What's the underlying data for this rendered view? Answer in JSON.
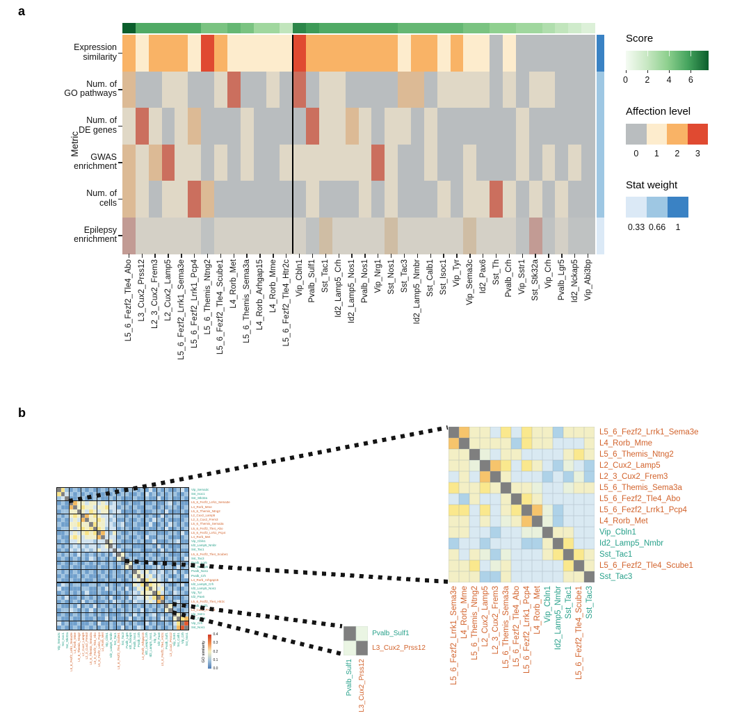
{
  "figure": {
    "panel_a_label": "a",
    "panel_b_label": "b"
  },
  "chart_data": [
    {
      "id": "panel_a",
      "type": "heatmap",
      "ylabel": "Metric",
      "row_labels": [
        [
          "Expression",
          "similarity"
        ],
        [
          "Num. of",
          "GO pathways"
        ],
        [
          "Num. of",
          "DE genes"
        ],
        [
          "GWAS",
          "enrichment"
        ],
        [
          "Num. of",
          "cells"
        ],
        [
          "Epilepsy",
          "enrichment"
        ]
      ],
      "columns": [
        "L5_6_Fezf2_Tle4_Abo",
        "L3_Cux2_Prss12",
        "L2_3_Cux2_Frem3",
        "L2_Cux2_Lamp5",
        "L5_6_Fezf2_Lrrk1_Sema3e",
        "L5_6_Fezf2_Lrrk1_Pcp4",
        "L5_6_Themis_Ntng2",
        "L5_6_Fezf2_Tle4_Scube1",
        "L4_Rorb_Met",
        "L5_6_Themis_Sema3a",
        "L4_Rorb_Arhgap15",
        "L4_Rorb_Mme",
        "L5_6_Fezf2_Tle4_Htr2c",
        "Vip_Cbln1",
        "Pvalb_Sulf1",
        "Sst_Tac1",
        "Id2_Lamp5_Crh",
        "Id2_Lamp5_Nos1",
        "Pvalb_Nos1",
        "Vip_Nrg1",
        "Sst_Nos1",
        "Sst_Tac3",
        "Id2_Lamp5_Nmbr",
        "Sst_Calb1",
        "Sst_Isoc1",
        "Vip_Tyr",
        "Vip_Sema3c",
        "Id2_Pax6",
        "Sst_Th",
        "Pvalb_Crh",
        "Vip_Sstr1",
        "Sst_Stk32a",
        "Vip_Crh",
        "Pvalb_Lgr5",
        "Id2_Nckap5",
        "Vip_Abi3bp"
      ],
      "affection_values": [
        [
          2,
          1,
          2,
          2,
          2,
          1,
          3,
          2,
          1,
          1,
          1,
          1,
          1,
          3,
          2,
          2,
          2,
          2,
          2,
          2,
          2,
          1,
          2,
          2,
          1,
          2,
          1,
          1,
          0,
          1,
          0,
          0,
          0,
          0,
          0,
          0
        ],
        [
          2,
          0,
          0,
          1,
          1,
          0,
          0,
          1,
          3,
          0,
          0,
          1,
          0,
          3,
          0,
          1,
          1,
          0,
          0,
          0,
          0,
          2,
          2,
          0,
          1,
          1,
          1,
          1,
          0,
          1,
          0,
          1,
          1,
          0,
          0,
          0
        ],
        [
          1,
          3,
          1,
          0,
          1,
          2,
          0,
          0,
          0,
          1,
          0,
          0,
          0,
          0,
          3,
          1,
          1,
          2,
          1,
          0,
          1,
          1,
          0,
          1,
          0,
          0,
          0,
          0,
          0,
          0,
          1,
          0,
          0,
          0,
          0,
          0
        ],
        [
          2,
          1,
          2,
          3,
          1,
          1,
          0,
          1,
          0,
          1,
          0,
          0,
          1,
          1,
          1,
          1,
          1,
          1,
          1,
          3,
          1,
          0,
          0,
          1,
          0,
          0,
          1,
          0,
          0,
          0,
          1,
          0,
          1,
          0,
          1,
          0
        ],
        [
          2,
          1,
          0,
          1,
          1,
          3,
          2,
          0,
          0,
          0,
          0,
          0,
          0,
          0,
          1,
          0,
          0,
          0,
          1,
          0,
          1,
          0,
          0,
          0,
          1,
          0,
          1,
          1,
          3,
          1,
          0,
          1,
          0,
          1,
          0,
          0
        ],
        [
          3,
          1,
          1,
          1,
          1,
          1,
          0,
          1,
          1,
          1,
          1,
          1,
          1,
          1,
          0,
          2,
          1,
          1,
          1,
          1,
          2,
          1,
          1,
          1,
          1,
          1,
          2,
          1,
          1,
          1,
          0,
          3,
          0,
          1,
          0,
          0
        ]
      ],
      "scores": [
        7,
        5,
        5,
        5,
        5,
        5,
        4,
        4,
        4.5,
        4,
        3,
        3,
        2,
        6,
        5.5,
        5,
        5,
        5,
        5,
        5,
        5,
        4.5,
        4.5,
        4.5,
        4.5,
        4.5,
        4,
        4,
        3.5,
        3.5,
        3,
        3,
        2.5,
        2,
        1.5,
        1
      ],
      "stat_weights": [
        1,
        0.66,
        0.66,
        0.66,
        0.66,
        0.33
      ],
      "divider_after_column": 13,
      "palettes": {
        "1": [
          "#b9bdbf",
          "#fdeccd",
          "#f9b366",
          "#e04a31"
        ],
        "0.66": [
          "#b9bdbf",
          "#e0d8c6",
          "#dcba95",
          "#cb6f5e"
        ],
        "0.33": [
          "#bfc2c2",
          "#d4d0c6",
          "#cfbda4",
          "#c29b94"
        ]
      },
      "stat_colors": {
        "1": "#3a82c4",
        "0.66": "#9ec7e3",
        "0.33": "#dbe9f6"
      },
      "score_color_stops": [
        [
          0,
          "#f5fbf3"
        ],
        [
          0.25,
          "#c9e8c4"
        ],
        [
          0.5,
          "#8fd08f"
        ],
        [
          0.75,
          "#45a45e"
        ],
        [
          1,
          "#0b5e2c"
        ]
      ],
      "legends": {
        "score": {
          "title": "Score",
          "ticks": [
            "0",
            "2",
            "4",
            "6"
          ],
          "tick_values": [
            0,
            2,
            4,
            6
          ]
        },
        "affection": {
          "title": "Affection level",
          "ticks": [
            "0",
            "1",
            "2",
            "3"
          ]
        },
        "stat": {
          "title": "Stat weight",
          "ticks": [
            "0.33",
            "0.66",
            "1"
          ]
        }
      }
    },
    {
      "id": "panel_b_small",
      "type": "heatmap",
      "labels": [
        "Vip_Sema3c",
        "Sst_Isoc1",
        "Sst_Stk32a",
        "L5_6_Fezf2_Lrrk1_Sema3e",
        "L4_Rorb_Mme",
        "L5_6_Themis_Ntng2",
        "L2_Cux2_Lamp5",
        "L2_3_Cux2_Frem3",
        "L5_6_Themis_Sema3a",
        "L5_6_Fezf2_Tle4_Abo",
        "L5_6_Fezf2_Lrrk1_Pcp4",
        "L4_Rorb_Met",
        "Vip_Cbln1",
        "Id2_Lamp5_Nmbr",
        "Sst_Tac1",
        "L5_6_Fezf2_Tle4_Scube1",
        "Sst_Tac3",
        "Pvalb_Lgr5",
        "Id2_Nckap5",
        "Pvalb_Nos1",
        "Pvalb_Crh",
        "L4_Rorb_Arhgap15",
        "Id2_Lamp5_Crh",
        "Id2_Lamp5_Nos1",
        "Vip_Tyr",
        "Id2_Pax6",
        "L5_6_Fezf2_Tle4_Htr2c",
        "Pvalb_Sulf1",
        "L3_Cux2_Prss12",
        "Vip_Sstr1",
        "Sst_Calb1",
        "Vip_Crh",
        "Sst_Nos1"
      ],
      "matrix": [
        "963232323223232322332324232322342",
        "694323232322323233223242323233223",
        "349223322332232322232232242232232",
        "232975545545434322322322322342322",
        "322795655455644233232233223233223",
        "233559546545534422223222332422232",
        "323565975654443332332323224233322",
        "232454795565434223223232432322223",
        "322556559655443342232224223243232",
        "233545656965344233222332232422323",
        "223454565697435322332223322233242",
        "322565455579444233223242233322223",
        "232445444344954322232322422233422",
        "323343434434594233322233242322233",
        "232434343454449422233222324232322",
        "323324323232324953222323223322232",
        "232232324323232592332232332233224",
        "232232232323232329523224223223232",
        "322322322232232235932322342332423",
        "323232323232323232395453434234232",
        "232223232223223223259545343322324",
        "322322322322322322345964543243222",
        "243233223323232232254696554322342",
        "422222332232432324235469545233223",
        "232323242232223232343555964324332",
        "324223232323242232434454697232223",
        "232232423222324323243345479323422",
        "322324232423232322323232323952332",
        "233432324232323232332423232593223",
        "232232323232322233242323423239543",
        "322322322322423222423232324325967",
        "423223223242232323232242322324698",
        "232232232323232242324323232233789"
      ],
      "palette": {
        "0": "#37679f",
        "1": "#4a7db5",
        "2": "#6f9fcc",
        "3": "#9fc3e0",
        "4": "#d0e2ef",
        "5": "#f0eec8",
        "6": "#f7e387",
        "7": "#f3b95f",
        "8": "#e2582e",
        "9": "#7f7f7f"
      },
      "block_boundaries": [
        3,
        6,
        10,
        13,
        15,
        17,
        19,
        22,
        25,
        27,
        29,
        31
      ],
      "colorbar": {
        "title": "GO similarity",
        "ticks": [
          "0.4",
          "0.3",
          "0.2",
          "0.1",
          "0.0"
        ],
        "stops": [
          "#cf3927",
          "#f08a4b",
          "#f8f0c0",
          "#a8c6dc",
          "#4e7cb5"
        ]
      }
    },
    {
      "id": "panel_b_large",
      "type": "heatmap",
      "labels": [
        "L5_6_Fezf2_Lrrk1_Sema3e",
        "L4_Rorb_Mme",
        "L5_6_Themis_Ntng2",
        "L2_Cux2_Lamp5",
        "L2_3_Cux2_Frem3",
        "L5_6_Themis_Sema3a",
        "L5_6_Fezf2_Tle4_Abo",
        "L5_6_Fezf2_Lrrk1_Pcp4",
        "L4_Rorb_Met",
        "Vip_Cbln1",
        "Id2_Lamp5_Nmbr",
        "Sst_Tac1",
        "L5_6_Fezf2_Tle4_Scube1",
        "Sst_Tac3"
      ],
      "matrix": [
        "GOyybYbYyyByyy",
        "OGyyyyBYyybbby",
        "yyGwbyybbbbyYy",
        "yywGOYbYybBwbB",
        "bybOGybbbBbBwB",
        "YyyYyGyywbbwyy",
        "bBybbyGYybbbbb",
        "YYbYbyYGOwBbbb",
        "yybybwyOGwBbbb",
        "yybbBbbwwGyybb",
        "BbbBbbbBByGYbb",
        "ybywBwbbbyYGYy",
        "yyYbwybbbbbYGy",
        "yyyBBybbbbbyyG"
      ],
      "palette": {
        "G": "#7f7f7f",
        "O": "#f6c46c",
        "Y": "#fae88d",
        "y": "#f3efc5",
        "w": "#e9f1dc",
        "b": "#d9e9f2",
        "B": "#aed2e8"
      }
    },
    {
      "id": "panel_b_inset",
      "type": "heatmap",
      "labels": [
        "Pvalb_Sulf1",
        "L3_Cux2_Prss12"
      ],
      "matrix": [
        "G5",
        "5G"
      ],
      "palette": {
        "G": "#7f7f7f",
        "5": "#eaf5e3"
      }
    }
  ],
  "label_colors": {
    "excitatory": "#d2622b",
    "inhibitory": "#27a08a"
  }
}
